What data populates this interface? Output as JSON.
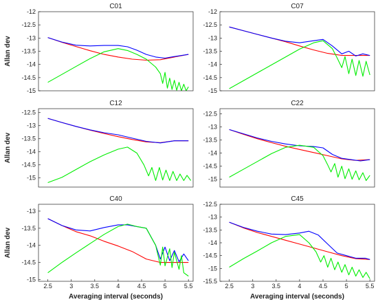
{
  "chart_data": [
    {
      "type": "line",
      "title": "C01",
      "ylabel": "Allan dev",
      "xlabel": "",
      "xlim": [
        2.3,
        5.6
      ],
      "ylim": [
        -15,
        -12
      ],
      "yticks": [
        -15,
        -14.5,
        -14,
        -13.5,
        -13,
        -12.5,
        -12
      ],
      "xticks": [],
      "series": [
        {
          "color": "#ff0000",
          "x": [
            2.5,
            2.8,
            3.1,
            3.4,
            3.7,
            4.0,
            4.3,
            4.6,
            4.9,
            5.2,
            5.5
          ],
          "y": [
            -12.98,
            -13.16,
            -13.32,
            -13.48,
            -13.62,
            -13.72,
            -13.8,
            -13.84,
            -13.82,
            -13.72,
            -13.62
          ]
        },
        {
          "color": "#0000ff",
          "x": [
            2.5,
            2.8,
            3.1,
            3.4,
            3.7,
            4.0,
            4.2,
            4.4,
            4.6,
            4.8,
            5.0,
            5.2,
            5.5
          ],
          "y": [
            -12.98,
            -13.15,
            -13.27,
            -13.3,
            -13.28,
            -13.28,
            -13.33,
            -13.46,
            -13.62,
            -13.72,
            -13.76,
            -13.7,
            -13.62
          ]
        },
        {
          "color": "#00ee00",
          "x": [
            2.5,
            2.8,
            3.1,
            3.4,
            3.7,
            4.0,
            4.2,
            4.4,
            4.6,
            4.8,
            4.9,
            4.95,
            5.0,
            5.05,
            5.1,
            5.15,
            5.2,
            5.25,
            5.3,
            5.35,
            5.4,
            5.45,
            5.5
          ],
          "y": [
            -14.68,
            -14.38,
            -14.08,
            -13.78,
            -13.52,
            -13.4,
            -13.47,
            -13.62,
            -13.8,
            -14.1,
            -14.35,
            -14.72,
            -14.3,
            -14.9,
            -14.52,
            -14.95,
            -14.6,
            -14.98,
            -14.68,
            -15.0,
            -14.75,
            -15.0,
            -14.85
          ]
        }
      ]
    },
    {
      "type": "line",
      "title": "C07",
      "ylabel": "",
      "xlabel": "",
      "xlim": [
        2.3,
        5.6
      ],
      "ylim": [
        -15,
        -12
      ],
      "yticks": [
        -15,
        -14.5,
        -14,
        -13.5,
        -13,
        -12.5,
        -12
      ],
      "xticks": [],
      "series": [
        {
          "color": "#ff0000",
          "x": [
            2.5,
            2.8,
            3.1,
            3.4,
            3.7,
            4.0,
            4.3,
            4.6,
            4.9,
            5.2,
            5.5
          ],
          "y": [
            -12.58,
            -12.72,
            -12.86,
            -13.0,
            -13.14,
            -13.3,
            -13.45,
            -13.58,
            -13.66,
            -13.66,
            -13.66
          ]
        },
        {
          "color": "#0000ff",
          "x": [
            2.5,
            2.8,
            3.1,
            3.4,
            3.7,
            4.0,
            4.3,
            4.5,
            4.7,
            4.9,
            5.05,
            5.2,
            5.35,
            5.5
          ],
          "y": [
            -12.58,
            -12.72,
            -12.86,
            -13.0,
            -13.12,
            -13.18,
            -13.1,
            -13.05,
            -13.3,
            -13.6,
            -13.5,
            -13.68,
            -13.6,
            -13.66
          ]
        },
        {
          "color": "#00ee00",
          "x": [
            2.5,
            2.8,
            3.1,
            3.4,
            3.7,
            4.0,
            4.3,
            4.5,
            4.7,
            4.8,
            4.9,
            4.97,
            5.05,
            5.12,
            5.2,
            5.27,
            5.35,
            5.42,
            5.5
          ],
          "y": [
            -14.92,
            -14.62,
            -14.32,
            -14.02,
            -13.72,
            -13.42,
            -13.18,
            -13.1,
            -13.4,
            -13.75,
            -14.12,
            -13.7,
            -14.35,
            -13.8,
            -14.42,
            -13.85,
            -14.45,
            -13.88,
            -14.4
          ]
        }
      ]
    },
    {
      "type": "line",
      "title": "C12",
      "ylabel": "Allan dev",
      "xlabel": "",
      "xlim": [
        2.3,
        5.6
      ],
      "ylim": [
        -15.35,
        -12.35
      ],
      "yticks": [
        -15,
        -14.5,
        -14,
        -13.5,
        -13,
        -12.5
      ],
      "xticks": [],
      "series": [
        {
          "color": "#ff0000",
          "x": [
            2.5,
            2.8,
            3.1,
            3.4,
            3.7,
            4.0,
            4.3,
            4.6,
            4.9,
            5.2,
            5.5
          ],
          "y": [
            -12.72,
            -12.88,
            -13.03,
            -13.17,
            -13.3,
            -13.42,
            -13.53,
            -13.62,
            -13.65,
            -13.58,
            -13.58
          ]
        },
        {
          "color": "#0000ff",
          "x": [
            2.5,
            2.8,
            3.1,
            3.4,
            3.7,
            4.0,
            4.3,
            4.6,
            4.9,
            5.2,
            5.5
          ],
          "y": [
            -12.72,
            -12.88,
            -13.03,
            -13.16,
            -13.27,
            -13.35,
            -13.48,
            -13.6,
            -13.66,
            -13.58,
            -13.58
          ]
        },
        {
          "color": "#00ee00",
          "x": [
            2.5,
            2.8,
            3.1,
            3.4,
            3.7,
            4.0,
            4.2,
            4.4,
            4.55,
            4.65,
            4.72,
            4.8,
            4.88,
            4.95,
            5.02,
            5.1,
            5.17,
            5.25,
            5.32,
            5.4,
            5.47,
            5.55
          ],
          "y": [
            -15.18,
            -14.98,
            -14.68,
            -14.38,
            -14.12,
            -13.9,
            -13.82,
            -14.05,
            -14.5,
            -14.92,
            -14.6,
            -15.1,
            -14.6,
            -15.08,
            -14.7,
            -15.1,
            -14.75,
            -15.1,
            -14.85,
            -15.1,
            -14.9,
            -15.1
          ]
        }
      ]
    },
    {
      "type": "line",
      "title": "C22",
      "ylabel": "",
      "xlabel": "",
      "xlim": [
        2.3,
        5.6
      ],
      "ylim": [
        -15.3,
        -12.3
      ],
      "yticks": [
        -15,
        -14.5,
        -14,
        -13.5,
        -13,
        -12.5
      ],
      "xticks": [],
      "series": [
        {
          "color": "#ff0000",
          "x": [
            2.5,
            2.8,
            3.1,
            3.4,
            3.7,
            4.0,
            4.3,
            4.6,
            4.9,
            5.2,
            5.5
          ],
          "y": [
            -13.1,
            -13.28,
            -13.45,
            -13.6,
            -13.74,
            -13.86,
            -13.98,
            -14.1,
            -14.22,
            -14.28,
            -14.25
          ]
        },
        {
          "color": "#0000ff",
          "x": [
            2.5,
            2.8,
            3.1,
            3.4,
            3.7,
            4.0,
            4.3,
            4.5,
            4.7,
            4.9,
            5.1,
            5.3,
            5.5
          ],
          "y": [
            -13.1,
            -13.26,
            -13.42,
            -13.55,
            -13.65,
            -13.72,
            -13.75,
            -13.8,
            -14.05,
            -14.2,
            -14.25,
            -14.3,
            -14.25
          ]
        },
        {
          "color": "#00ee00",
          "x": [
            2.5,
            2.8,
            3.1,
            3.4,
            3.7,
            4.0,
            4.3,
            4.5,
            4.6,
            4.67,
            4.75,
            4.82,
            4.9,
            4.97,
            5.05,
            5.12,
            5.2,
            5.27,
            5.35,
            5.42,
            5.5
          ],
          "y": [
            -14.92,
            -14.62,
            -14.32,
            -14.02,
            -13.78,
            -13.7,
            -13.78,
            -14.1,
            -14.45,
            -14.72,
            -14.4,
            -14.92,
            -14.5,
            -14.98,
            -14.6,
            -15.0,
            -14.68,
            -15.02,
            -14.75,
            -15.05,
            -14.85
          ]
        }
      ]
    },
    {
      "type": "line",
      "title": "C40",
      "ylabel": "Allan dev",
      "xlabel": "Averaging interval (seconds)",
      "xlim": [
        2.3,
        5.6
      ],
      "ylim": [
        -15.05,
        -12.8
      ],
      "yticks": [
        -15,
        -14.5,
        -14,
        -13.5,
        -13
      ],
      "xticks": [
        2.5,
        3,
        3.5,
        4,
        4.5,
        5,
        5.5
      ],
      "series": [
        {
          "color": "#ff0000",
          "x": [
            2.5,
            2.8,
            3.1,
            3.4,
            3.7,
            4.0,
            4.3,
            4.6,
            4.9,
            5.2,
            5.5
          ],
          "y": [
            -13.22,
            -13.42,
            -13.6,
            -13.72,
            -13.88,
            -14.02,
            -14.18,
            -14.4,
            -14.5,
            -14.5,
            -14.5
          ]
        },
        {
          "color": "#0000ff",
          "x": [
            2.5,
            2.8,
            3.1,
            3.4,
            3.7,
            4.0,
            4.2,
            4.4,
            4.6,
            4.8,
            4.9,
            5.0,
            5.1,
            5.2,
            5.3,
            5.4,
            5.5
          ],
          "y": [
            -13.22,
            -13.42,
            -13.55,
            -13.58,
            -13.48,
            -13.4,
            -13.4,
            -13.45,
            -13.5,
            -14.0,
            -14.4,
            -14.05,
            -14.45,
            -14.15,
            -14.48,
            -14.25,
            -14.45
          ]
        },
        {
          "color": "#00ee00",
          "x": [
            2.5,
            2.8,
            3.1,
            3.4,
            3.7,
            4.0,
            4.2,
            4.4,
            4.6,
            4.8,
            4.9,
            4.95,
            5.0,
            5.1,
            5.15,
            5.2,
            5.3,
            5.35,
            5.4,
            5.5
          ],
          "y": [
            -14.8,
            -14.5,
            -14.22,
            -13.95,
            -13.68,
            -13.45,
            -13.38,
            -13.45,
            -13.5,
            -14.0,
            -14.58,
            -14.05,
            -14.6,
            -14.1,
            -14.65,
            -14.2,
            -14.7,
            -14.3,
            -14.8,
            -14.9
          ]
        }
      ]
    },
    {
      "type": "line",
      "title": "C45",
      "ylabel": "",
      "xlabel": "Averaging interval (seconds)",
      "xlim": [
        2.3,
        5.6
      ],
      "ylim": [
        -15.5,
        -12.5
      ],
      "yticks": [
        -15.5,
        -15,
        -14.5,
        -14,
        -13.5,
        -13,
        -12.5
      ],
      "xticks": [
        2.5,
        3,
        3.5,
        4,
        4.5,
        5,
        5.5
      ],
      "series": [
        {
          "color": "#ff0000",
          "x": [
            2.5,
            2.8,
            3.1,
            3.4,
            3.7,
            4.0,
            4.3,
            4.6,
            4.9,
            5.2,
            5.5
          ],
          "y": [
            -13.2,
            -13.42,
            -13.6,
            -13.75,
            -13.9,
            -14.05,
            -14.2,
            -14.35,
            -14.5,
            -14.62,
            -14.65
          ]
        },
        {
          "color": "#0000ff",
          "x": [
            2.5,
            2.8,
            3.1,
            3.4,
            3.7,
            4.0,
            4.2,
            4.4,
            4.6,
            4.8,
            5.0,
            5.2,
            5.4,
            5.5
          ],
          "y": [
            -13.2,
            -13.4,
            -13.55,
            -13.66,
            -13.68,
            -13.62,
            -13.55,
            -13.7,
            -14.05,
            -14.4,
            -14.5,
            -14.6,
            -14.6,
            -14.65
          ]
        },
        {
          "color": "#00ee00",
          "x": [
            2.5,
            2.8,
            3.1,
            3.4,
            3.7,
            4.0,
            4.2,
            4.35,
            4.45,
            4.52,
            4.6,
            4.67,
            4.75,
            4.82,
            4.9,
            4.97,
            5.05,
            5.12,
            5.2,
            5.27,
            5.35,
            5.42,
            5.5
          ],
          "y": [
            -14.95,
            -14.62,
            -14.32,
            -14.0,
            -13.75,
            -13.68,
            -14.0,
            -14.35,
            -14.75,
            -14.5,
            -14.95,
            -14.6,
            -15.05,
            -14.75,
            -15.15,
            -14.85,
            -15.25,
            -14.95,
            -15.3,
            -15.05,
            -15.35,
            -15.15,
            -15.4
          ]
        }
      ]
    }
  ]
}
